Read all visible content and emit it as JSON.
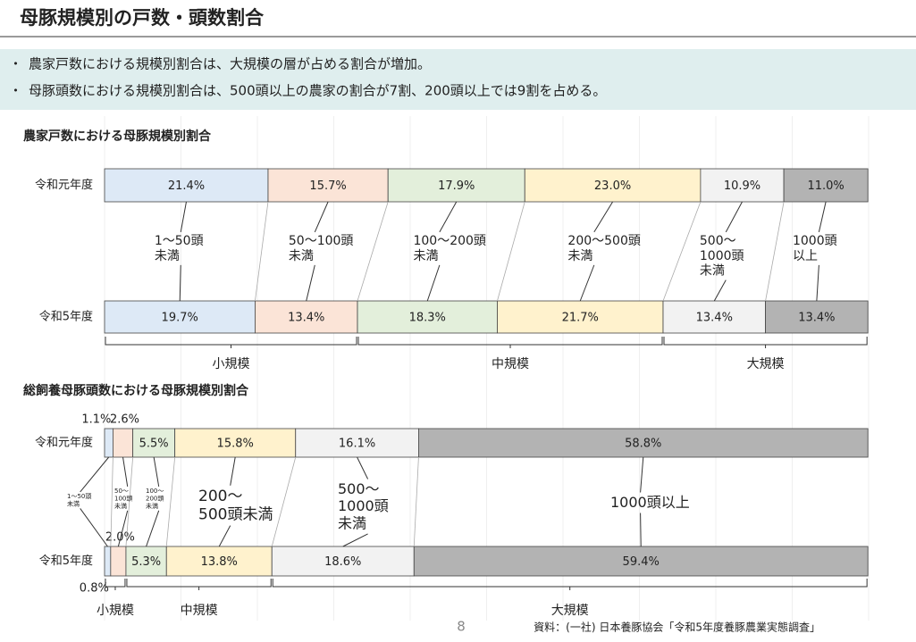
{
  "header": {
    "title": "母豚規模別の戸数・頭数割合"
  },
  "bullets": [
    "農家戸数における規模別割合は、大規模の層が占める割合が増加。",
    "母豚頭数における規模別割合は、500頭以上の農家の割合が7割、200頭以上では9割を占める。"
  ],
  "chart_data": [
    {
      "type": "bar",
      "stacked": true,
      "orientation": "horizontal",
      "title": "農家戸数における母豚規模別割合",
      "categories": [
        "令和元年度",
        "令和5年度"
      ],
      "xlim": [
        0,
        100
      ],
      "groups": [
        {
          "name": "小規模",
          "series": [
            {
              "name": [
                "1〜50頭",
                "未満"
              ],
              "color": "#dde9f6",
              "values": [
                21.4,
                19.7
              ],
              "value_labels": [
                "21.4%",
                "19.7%"
              ]
            },
            {
              "name": [
                "50〜100頭",
                "未満"
              ],
              "color": "#fbe4d7",
              "values": [
                15.7,
                13.4
              ],
              "value_labels": [
                "15.7%",
                "13.4%"
              ]
            }
          ]
        },
        {
          "name": "中規模",
          "series": [
            {
              "name": [
                "100〜200頭",
                "未満"
              ],
              "color": "#e3efdb",
              "values": [
                17.9,
                18.3
              ],
              "value_labels": [
                "17.9%",
                "18.3%"
              ]
            },
            {
              "name": [
                "200〜500頭",
                "未満"
              ],
              "color": "#fff2cd",
              "values": [
                23.0,
                21.7
              ],
              "value_labels": [
                "23.0%",
                "21.7%"
              ]
            }
          ]
        },
        {
          "name": "大規模",
          "series": [
            {
              "name": [
                "500〜",
                "1000頭",
                "未満"
              ],
              "color": "#f2f2f2",
              "values": [
                10.9,
                13.4
              ],
              "value_labels": [
                "10.9%",
                "13.4%"
              ]
            },
            {
              "name": [
                "1000頭",
                "以上"
              ],
              "color": "#b3b3b3",
              "values": [
                11.0,
                13.4
              ],
              "value_labels": [
                "11.0%",
                "13.4%"
              ]
            }
          ]
        }
      ]
    },
    {
      "type": "bar",
      "stacked": true,
      "orientation": "horizontal",
      "title": "総飼養母豚頭数における母豚規模別割合",
      "categories": [
        "令和元年度",
        "令和5年度"
      ],
      "xlim": [
        0,
        100
      ],
      "groups": [
        {
          "name": "小規模",
          "series": [
            {
              "name": [
                "1〜50頭",
                "未満"
              ],
              "color": "#dde9f6",
              "values": [
                1.1,
                0.8
              ],
              "value_labels": [
                "1.1%",
                "0.8%"
              ]
            },
            {
              "name": [
                "50〜",
                "100頭",
                "未満"
              ],
              "color": "#fbe4d7",
              "values": [
                2.6,
                2.0
              ],
              "value_labels": [
                "2.6%",
                "2.0%"
              ]
            }
          ]
        },
        {
          "name": "中規模",
          "series": [
            {
              "name": [
                "100〜",
                "200頭",
                "未満"
              ],
              "color": "#e3efdb",
              "values": [
                5.5,
                5.3
              ],
              "value_labels": [
                "5.5%",
                "5.3%"
              ]
            },
            {
              "name": [
                "200〜",
                "500頭未満"
              ],
              "color": "#fff2cd",
              "values": [
                15.8,
                13.8
              ],
              "value_labels": [
                "15.8%",
                "13.8%"
              ]
            }
          ]
        },
        {
          "name": "大規模",
          "series": [
            {
              "name": [
                "500〜",
                "1000頭",
                "未満"
              ],
              "color": "#f2f2f2",
              "values": [
                16.1,
                18.6
              ],
              "value_labels": [
                "16.1%",
                "18.6%"
              ]
            },
            {
              "name": [
                "1000頭以上"
              ],
              "color": "#b3b3b3",
              "values": [
                58.8,
                59.4
              ],
              "value_labels": [
                "58.8%",
                "59.4%"
              ]
            }
          ]
        }
      ]
    }
  ],
  "footer": {
    "page": "8",
    "source": "資料：(一社) 日本養豚協会「令和5年度養豚農業実態調査」"
  }
}
